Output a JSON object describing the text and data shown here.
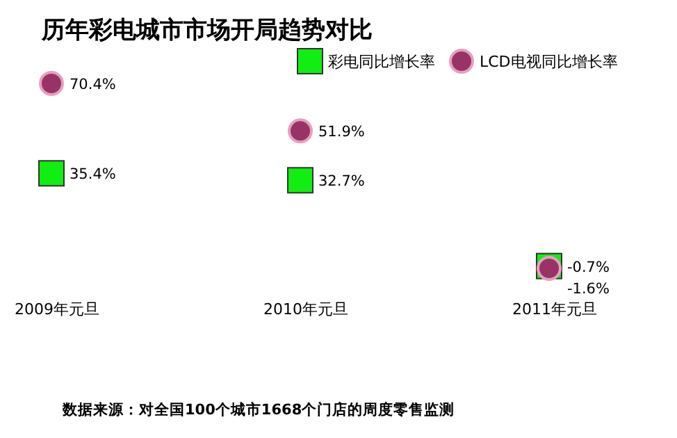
{
  "chart_data": {
    "type": "scatter",
    "title": "历年彩电城市市场开局趋势对比",
    "categories": [
      "2009年元旦",
      "2010年元旦",
      "2011年元旦"
    ],
    "series": [
      {
        "name": "彩电同比增长率",
        "color": "#11ee11",
        "marker": "square",
        "values": [
          35.4,
          32.7,
          -0.7
        ],
        "value_labels": [
          "35.4%",
          "32.7%",
          "-0.7%"
        ]
      },
      {
        "name": "LCD电视同比增长率",
        "color": "#993366",
        "marker": "circle",
        "values": [
          70.4,
          51.9,
          -1.6
        ],
        "value_labels": [
          "70.4%",
          "51.9%",
          "-1.6%"
        ]
      }
    ],
    "legend": "top right",
    "annotations": [
      "数据来源：对全国100个城市1668个门店的周度零售监测"
    ]
  }
}
